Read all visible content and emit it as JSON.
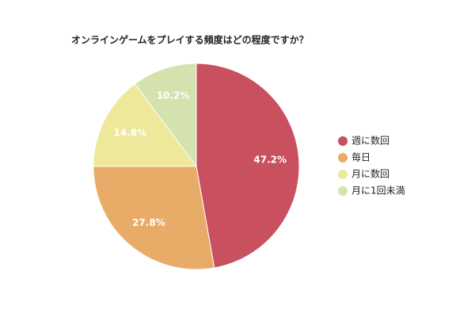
{
  "chart_data": {
    "type": "pie",
    "title": "オンラインゲームをプレイする頻度はどの程度ですか？",
    "categories": [
      "週に数回",
      "毎日",
      "月に数回",
      "月に1回未満"
    ],
    "values": [
      47.2,
      27.8,
      14.8,
      10.2
    ],
    "value_labels": [
      "47.2%",
      "27.8%",
      "14.8%",
      "10.2%"
    ],
    "colors": [
      "#c9505e",
      "#e8ab68",
      "#ede89a",
      "#d4e2ad"
    ],
    "legend": "right"
  }
}
